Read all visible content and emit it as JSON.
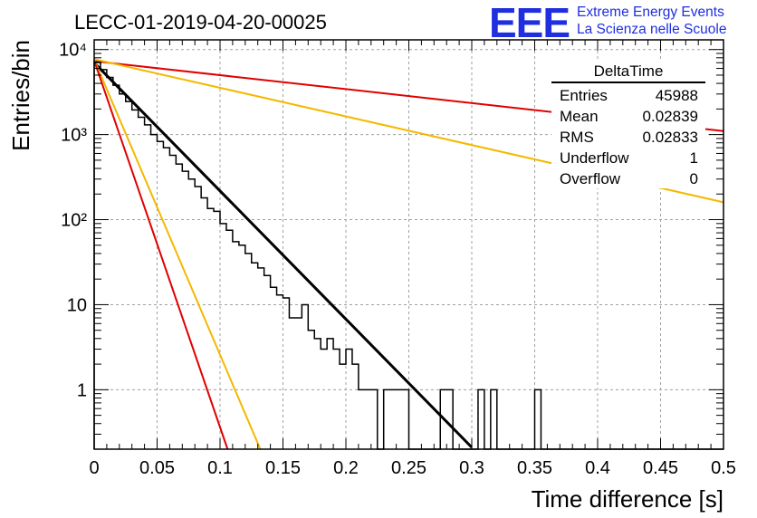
{
  "header": {
    "run_title": "LECC-01-2019-04-20-00025",
    "logo_mark": "EEE",
    "logo_line1": "Extreme Energy Events",
    "logo_line2": "La Scienza nelle Scuole",
    "brand_color": "#1f2fe0"
  },
  "stats": {
    "title": "DeltaTime",
    "rows": [
      {
        "label": "Entries",
        "value": "45988"
      },
      {
        "label": "Mean",
        "value": "0.02839"
      },
      {
        "label": "RMS",
        "value": "0.02833"
      },
      {
        "label": "Underflow",
        "value": "1"
      },
      {
        "label": "Overflow",
        "value": "0"
      }
    ]
  },
  "chart_data": {
    "type": "histogram",
    "title": "",
    "xlabel": "Time difference [s]",
    "ylabel": "Entries/bin",
    "xlim": [
      0,
      0.5
    ],
    "ylim": [
      0.2,
      13000
    ],
    "yscale": "log",
    "grid": true,
    "xticks": [
      0,
      0.05,
      0.1,
      0.15,
      0.2,
      0.25,
      0.3,
      0.35,
      0.4,
      0.45,
      0.5
    ],
    "xtick_labels": [
      "0",
      "0.05",
      "0.1",
      "0.15",
      "0.2",
      "0.25",
      "0.3",
      "0.35",
      "0.4",
      "0.45",
      "0.5"
    ],
    "yticks": [
      1,
      10,
      100,
      1000,
      10000
    ],
    "ytick_labels": [
      "1",
      "10",
      "10²",
      "10³",
      "10⁴"
    ],
    "bin_width": 0.005,
    "histogram_counts": [
      7100,
      5800,
      4700,
      3800,
      3000,
      2450,
      1950,
      1600,
      1300,
      1000,
      830,
      700,
      570,
      450,
      370,
      300,
      245,
      180,
      135,
      125,
      90,
      75,
      55,
      50,
      40,
      31,
      27,
      22,
      16,
      13,
      12,
      7,
      7,
      10,
      5,
      4,
      3,
      4,
      3,
      2,
      3,
      2,
      1,
      1,
      1,
      0,
      1,
      1,
      1,
      1,
      0,
      0,
      0,
      0,
      0,
      1,
      1,
      0,
      0,
      0,
      0,
      1,
      0,
      1,
      0,
      0,
      0,
      0,
      0,
      0,
      1,
      0,
      0,
      0,
      0,
      0,
      0,
      0,
      0,
      0,
      0,
      0,
      0,
      0,
      0,
      0,
      0,
      0,
      0,
      0,
      0,
      0,
      0,
      0,
      0,
      0,
      0,
      0,
      0,
      0
    ],
    "fit_lines": [
      {
        "color": "#000000",
        "x": [
          0,
          0.3
        ],
        "y": [
          7000,
          0.21
        ]
      },
      {
        "color": "#e00000",
        "x": [
          0,
          0.5
        ],
        "y": [
          7300,
          1100
        ]
      },
      {
        "color": "#f5b800",
        "x": [
          0,
          0.5
        ],
        "y": [
          7700,
          160
        ]
      },
      {
        "color": "#f5b800",
        "x": [
          0,
          0.132
        ],
        "y": [
          7600,
          0.2
        ]
      },
      {
        "color": "#e00000",
        "x": [
          0,
          0.106
        ],
        "y": [
          7400,
          0.2
        ]
      }
    ]
  }
}
